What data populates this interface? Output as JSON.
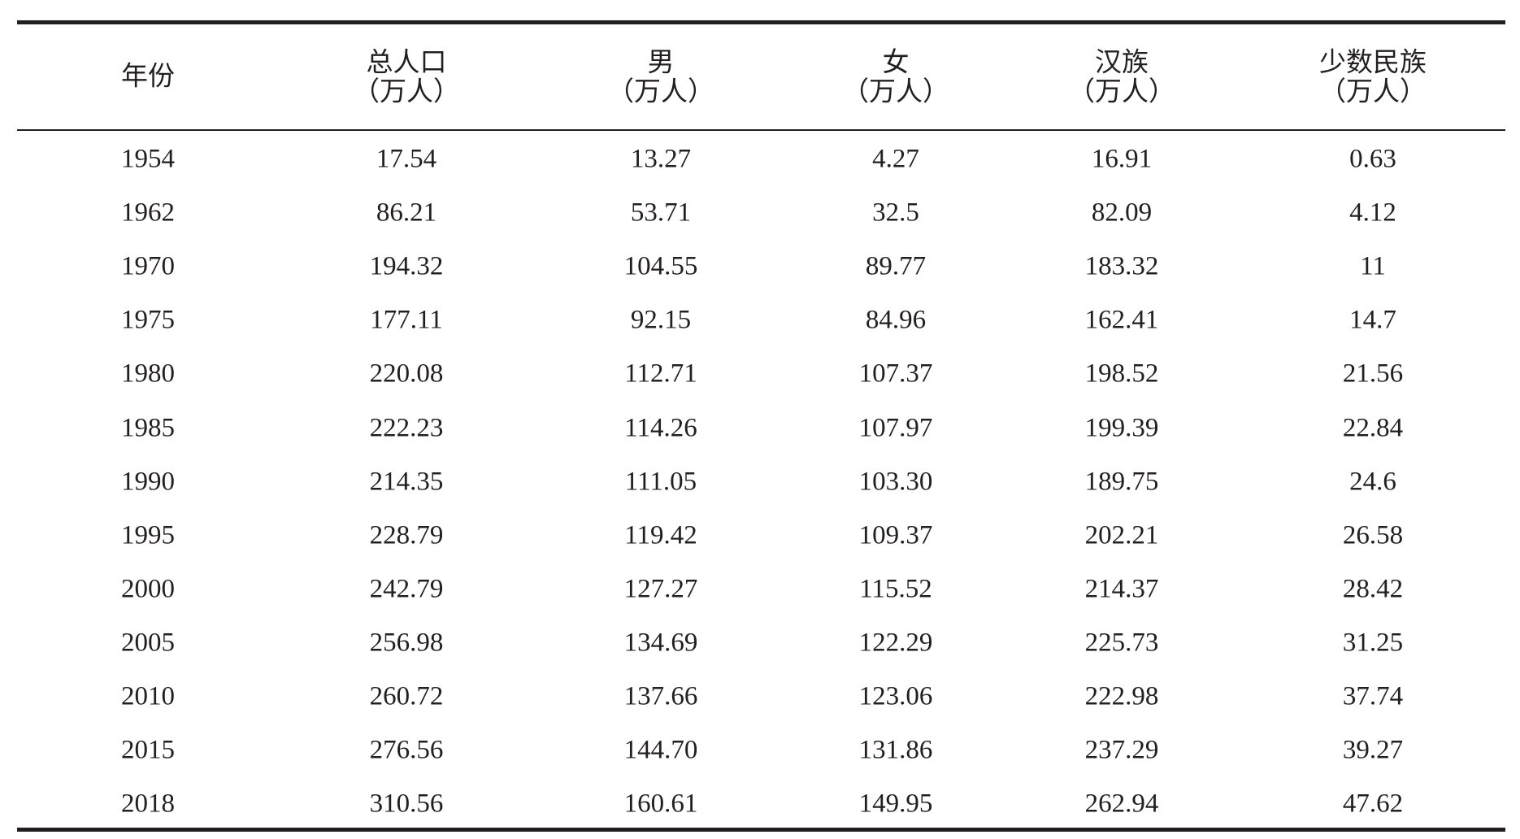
{
  "table": {
    "header": [
      "年份",
      {
        "name": "总人口",
        "unit": "（万人）"
      },
      {
        "name": "男",
        "unit": "（万人）"
      },
      {
        "name": "女",
        "unit": "（万人）"
      },
      {
        "name": "汉族",
        "unit": "（万人）"
      },
      {
        "name": "少数民族",
        "unit": "（万人）"
      }
    ],
    "rows": [
      [
        "1954",
        "17.54",
        "13.27",
        "4.27",
        "16.91",
        "0.63"
      ],
      [
        "1962",
        "86.21",
        "53.71",
        "32.5",
        "82.09",
        "4.12"
      ],
      [
        "1970",
        "194.32",
        "104.55",
        "89.77",
        "183.32",
        "11"
      ],
      [
        "1975",
        "177.11",
        "92.15",
        "84.96",
        "162.41",
        "14.7"
      ],
      [
        "1980",
        "220.08",
        "112.71",
        "107.37",
        "198.52",
        "21.56"
      ],
      [
        "1985",
        "222.23",
        "114.26",
        "107.97",
        "199.39",
        "22.84"
      ],
      [
        "1990",
        "214.35",
        "111.05",
        "103.30",
        "189.75",
        "24.6"
      ],
      [
        "1995",
        "228.79",
        "119.42",
        "109.37",
        "202.21",
        "26.58"
      ],
      [
        "2000",
        "242.79",
        "127.27",
        "115.52",
        "214.37",
        "28.42"
      ],
      [
        "2005",
        "256.98",
        "134.69",
        "122.29",
        "225.73",
        "31.25"
      ],
      [
        "2010",
        "260.72",
        "137.66",
        "123.06",
        "222.98",
        "37.74"
      ],
      [
        "2015",
        "276.56",
        "144.70",
        "131.86",
        "237.29",
        "39.27"
      ],
      [
        "2018",
        "310.56",
        "160.61",
        "149.95",
        "262.94",
        "47.62"
      ]
    ]
  }
}
